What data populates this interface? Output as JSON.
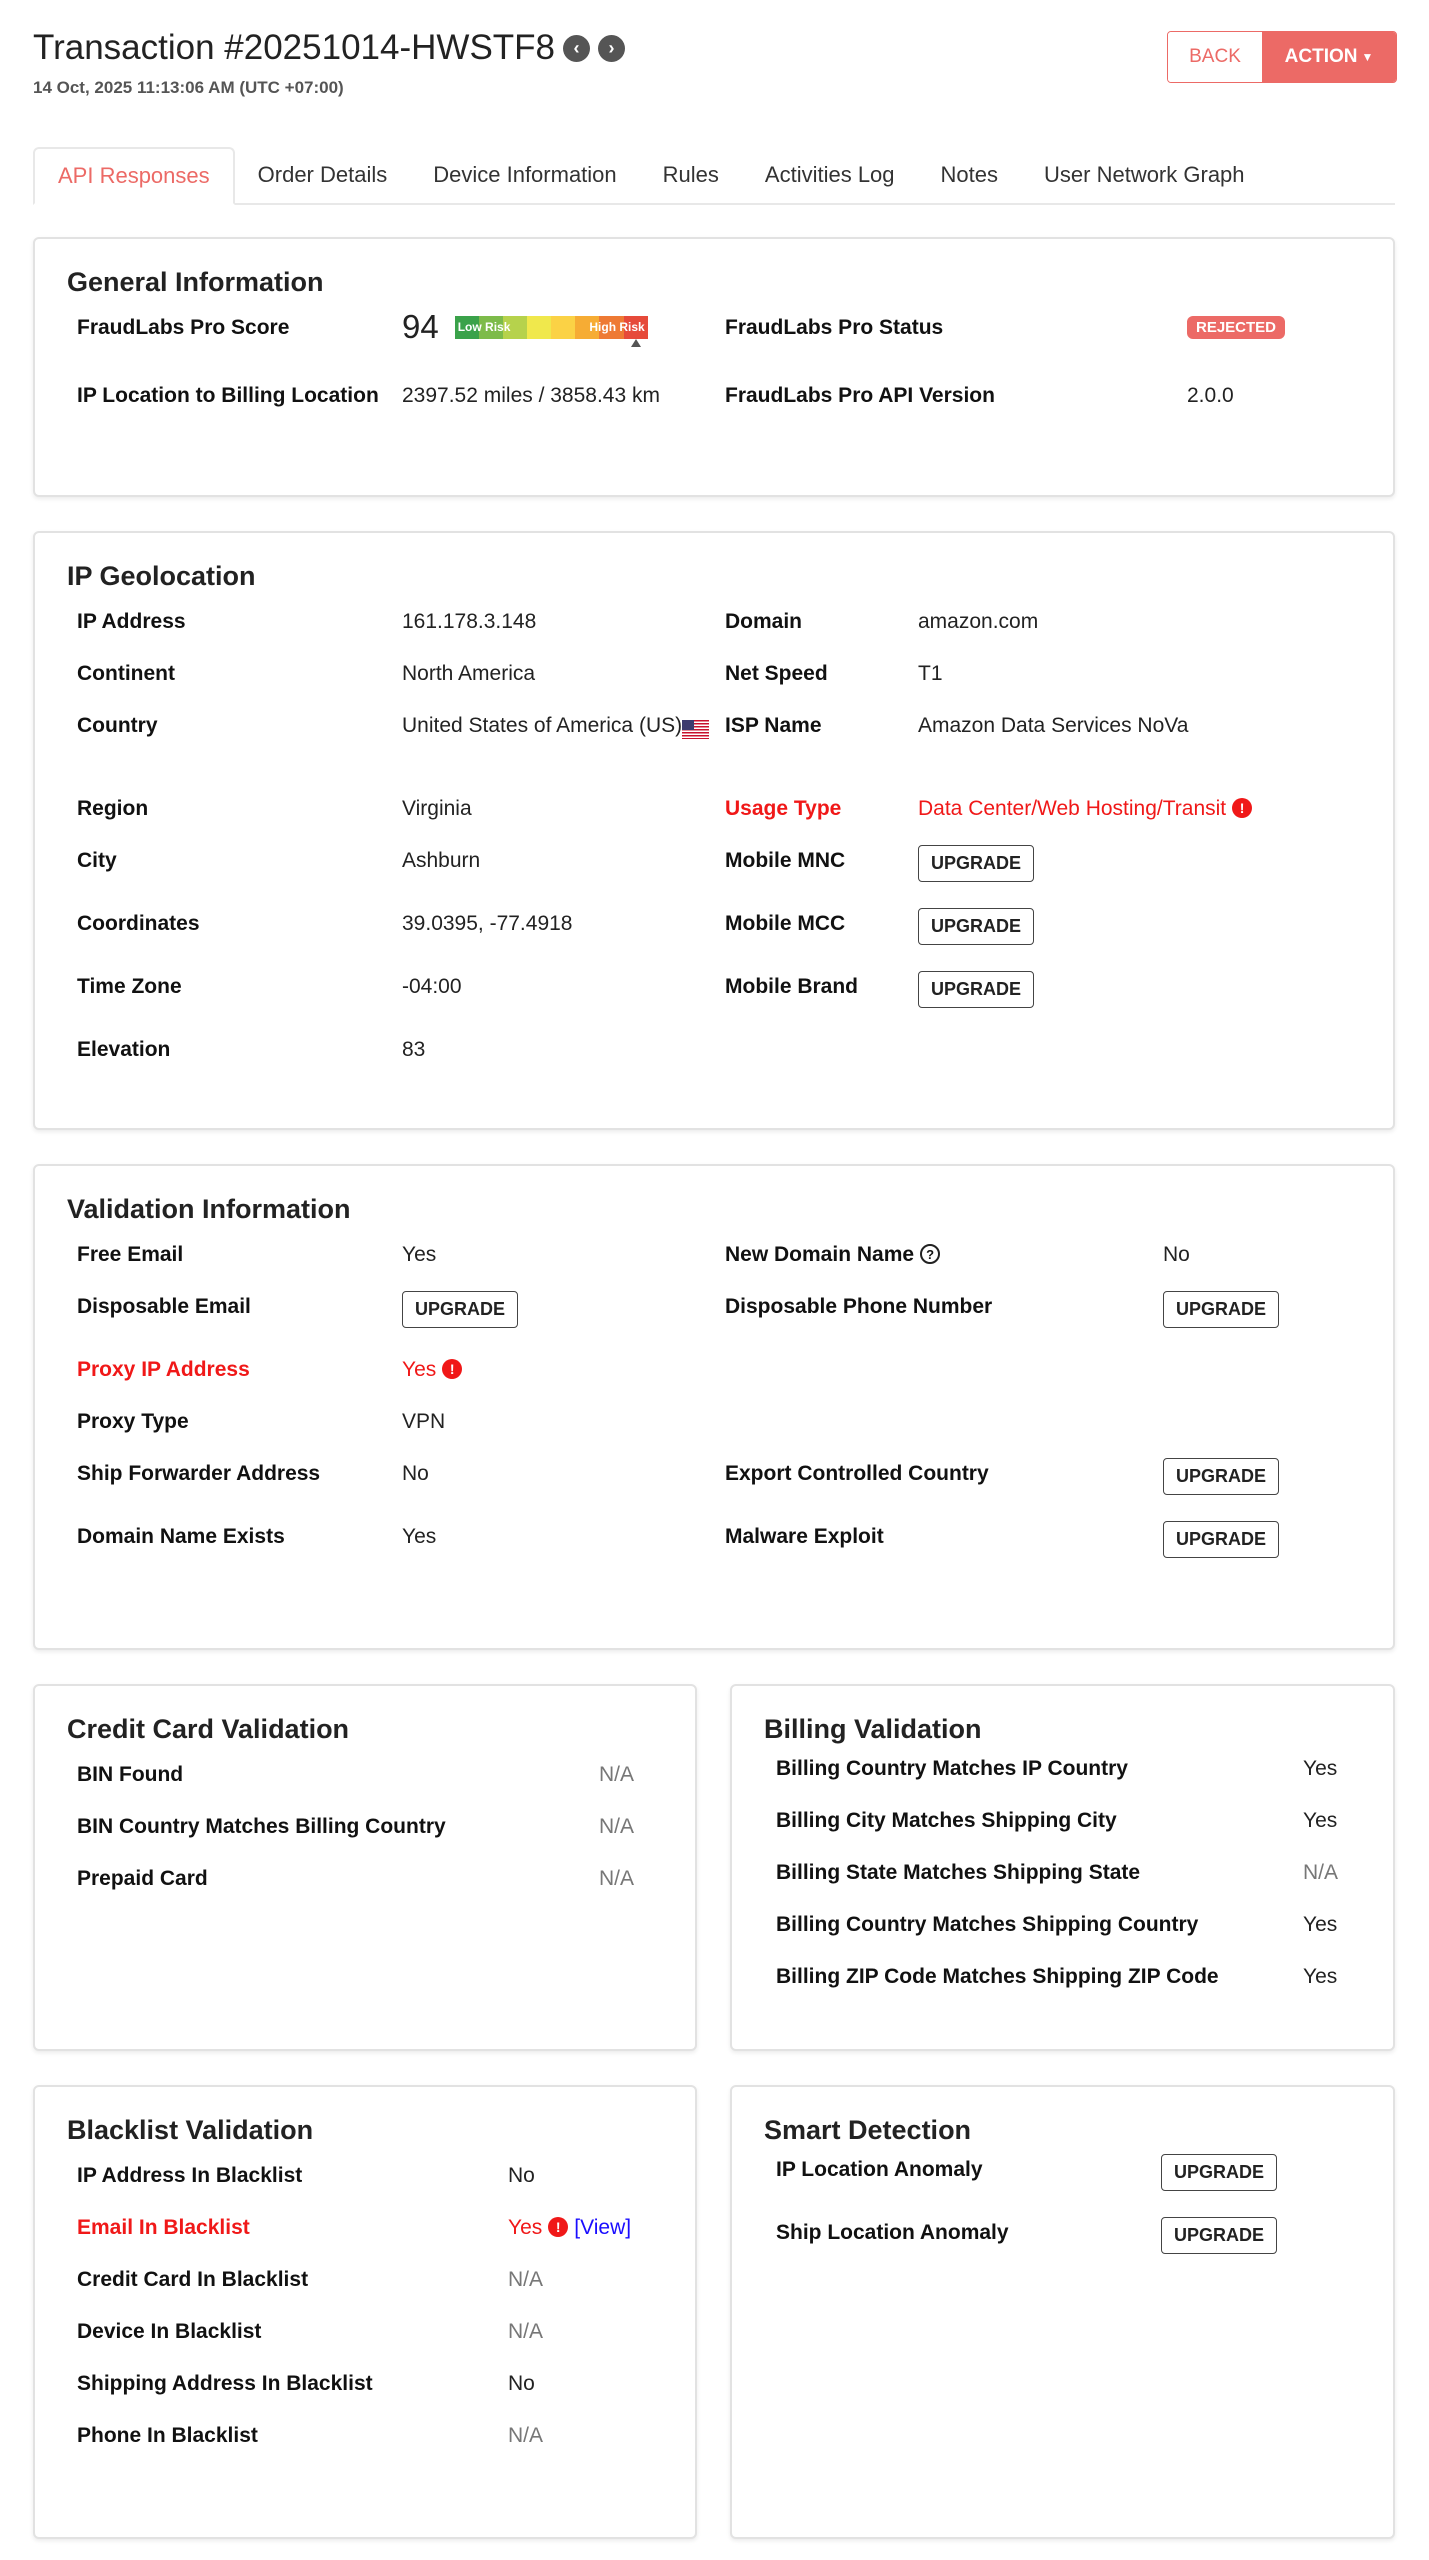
{
  "header": {
    "title": "Transaction #20251014-HWSTF8",
    "prev_icon": "chevron-left",
    "next_icon": "chevron-right",
    "timestamp": "14 Oct, 2025 11:13:06 AM (UTC +07:00)",
    "back_label": "BACK",
    "action_label": "ACTION",
    "accent": "#ec6a66"
  },
  "tabs": [
    "API Responses",
    "Order Details",
    "Device Information",
    "Rules",
    "Activities Log",
    "Notes",
    "User Network Graph"
  ],
  "active_tab": "API Responses",
  "general": {
    "title": "General Information",
    "score_label": "FraudLabs Pro Score",
    "score": "94",
    "score_fraction": 0.94,
    "low_risk": "Low Risk",
    "high_risk": "High Risk",
    "status_label": "FraudLabs Pro Status",
    "status": "REJECTED",
    "distance_label": "IP Location to Billing Location",
    "distance": "2397.52 miles / 3858.43 km",
    "version_label": "FraudLabs Pro API Version",
    "version": "2.0.0"
  },
  "geo": {
    "title": "IP Geolocation",
    "rows": [
      [
        {
          "label": "IP Address",
          "value": "161.178.3.148"
        },
        {
          "label": "Domain",
          "value": "amazon.com"
        }
      ],
      [
        {
          "label": "Continent",
          "value": "North America"
        },
        {
          "label": "Net Speed",
          "value": "T1"
        }
      ],
      [
        {
          "label": "Country",
          "value": "United States of America (US)",
          "flag": "us-flag"
        },
        {
          "label": "ISP Name",
          "value": "Amazon Data Services NoVa"
        }
      ],
      [
        {
          "label": "Region",
          "value": "Virginia"
        },
        {
          "label": "Usage Type",
          "value": "Data Center/Web Hosting/Transit",
          "status": "red",
          "alert": true
        }
      ],
      [
        {
          "label": "City",
          "value": "Ashburn"
        },
        {
          "label": "Mobile MNC",
          "upgrade": "UPGRADE"
        }
      ],
      [
        {
          "label": "Coordinates",
          "value": "39.0395, -77.4918"
        },
        {
          "label": "Mobile MCC",
          "upgrade": "UPGRADE"
        }
      ],
      [
        {
          "label": "Time Zone",
          "value": "-04:00"
        },
        {
          "label": "Mobile Brand",
          "upgrade": "UPGRADE"
        }
      ],
      [
        {
          "label": "Elevation",
          "value": "83"
        },
        {}
      ]
    ]
  },
  "validation": {
    "title": "Validation Information",
    "rows": [
      [
        {
          "label": "Free Email",
          "value": "Yes"
        },
        {
          "label": "New Domain Name",
          "help": true,
          "value": "No"
        }
      ],
      [
        {
          "label": "Disposable Email",
          "upgrade": "UPGRADE"
        },
        {
          "label": "Disposable Phone Number",
          "upgrade": "UPGRADE"
        }
      ],
      [
        {
          "label": "Proxy IP Address",
          "value": "Yes",
          "status": "red",
          "alert": true
        },
        {}
      ],
      [
        {
          "label": "Proxy Type",
          "value": "VPN"
        },
        {}
      ],
      [
        {
          "label": "Ship Forwarder Address",
          "value": "No"
        },
        {
          "label": "Export Controlled Country",
          "upgrade": "UPGRADE"
        }
      ],
      [
        {
          "label": "Domain Name Exists",
          "value": "Yes"
        },
        {
          "label": "Malware Exploit",
          "upgrade": "UPGRADE"
        }
      ]
    ]
  },
  "credit_card": {
    "title": "Credit Card Validation",
    "rows": [
      {
        "label": "BIN Found",
        "value": "N/A",
        "status": "na"
      },
      {
        "label": "BIN Country Matches Billing Country",
        "value": "N/A",
        "status": "na"
      },
      {
        "label": "Prepaid Card",
        "value": "N/A",
        "status": "na"
      }
    ]
  },
  "billing": {
    "title": "Billing Validation",
    "rows": [
      {
        "label": "Billing Country Matches IP Country",
        "value": "Yes"
      },
      {
        "label": "Billing City Matches Shipping City",
        "value": "Yes"
      },
      {
        "label": "Billing State Matches Shipping State",
        "value": "N/A",
        "status": "na"
      },
      {
        "label": "Billing Country Matches Shipping Country",
        "value": "Yes"
      },
      {
        "label": "Billing ZIP Code Matches Shipping ZIP Code",
        "value": "Yes"
      }
    ]
  },
  "blacklist": {
    "title": "Blacklist Validation",
    "rows": [
      {
        "label": "IP Address In Blacklist",
        "value": "No"
      },
      {
        "label": "Email In Blacklist",
        "value": "Yes",
        "status": "red",
        "alert": true,
        "view": "[View]"
      },
      {
        "label": "Credit Card In Blacklist",
        "value": "N/A",
        "status": "na"
      },
      {
        "label": "Device In Blacklist",
        "value": "N/A",
        "status": "na"
      },
      {
        "label": "Shipping Address In Blacklist",
        "value": "No"
      },
      {
        "label": "Phone In Blacklist",
        "value": "N/A",
        "status": "na"
      }
    ]
  },
  "smart": {
    "title": "Smart Detection",
    "rows": [
      {
        "label": "IP Location Anomaly",
        "upgrade": "UPGRADE"
      },
      {
        "label": "Ship Location Anomaly",
        "upgrade": "UPGRADE"
      }
    ]
  }
}
